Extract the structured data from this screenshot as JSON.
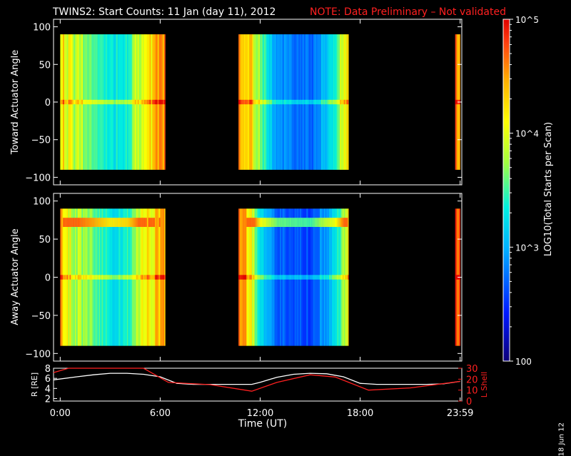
{
  "header": {
    "title": "TWINS2: Start Counts: 11 Jan (day  11), 2012",
    "note": "NOTE: Data Preliminary – Not validated"
  },
  "footer": {
    "xlabel": "Time (UT)",
    "stamp": "18 Jun 12"
  },
  "colors": {
    "background": "#000000",
    "axes": "#ffffff",
    "note": "#ff2020",
    "lshell_line": "#ff2020",
    "r_line": "#ffffff"
  },
  "chart_data": [
    {
      "type": "heatmap",
      "ylabel": "Toward Actuator Angle",
      "ylim": [
        -110,
        110
      ],
      "y_ticks": [
        100,
        50,
        0,
        -50,
        -100
      ],
      "data_y_range": [
        -90,
        90
      ],
      "x_ticks_hours": [
        0,
        6,
        12,
        18,
        24
      ],
      "x_tick_labels": [
        "0:00",
        "6:00",
        "12:00",
        "18:00",
        "23:59"
      ],
      "xlim_hours": [
        -0.4,
        24.1
      ],
      "blocks_hours": [
        [
          0.0,
          6.3
        ],
        [
          10.7,
          17.3
        ],
        [
          23.7,
          24.0
        ]
      ],
      "log10_counts_profile": [
        {
          "t": 0.0,
          "v": 4.3
        },
        {
          "t": 0.5,
          "v": 4.0
        },
        {
          "t": 1.0,
          "v": 3.8
        },
        {
          "t": 2.0,
          "v": 3.6
        },
        {
          "t": 3.0,
          "v": 3.3
        },
        {
          "t": 4.0,
          "v": 3.4
        },
        {
          "t": 5.0,
          "v": 4.1
        },
        {
          "t": 6.0,
          "v": 4.5
        },
        {
          "t": 10.7,
          "v": 4.6
        },
        {
          "t": 11.5,
          "v": 4.2
        },
        {
          "t": 12.0,
          "v": 3.6
        },
        {
          "t": 13.0,
          "v": 2.9
        },
        {
          "t": 15.0,
          "v": 2.7
        },
        {
          "t": 16.5,
          "v": 3.4
        },
        {
          "t": 17.3,
          "v": 4.3
        },
        {
          "t": 23.7,
          "v": 4.6
        },
        {
          "t": 24.0,
          "v": 4.6
        }
      ],
      "colorbar": {
        "label": "LOG10(Total Starts per Scan)",
        "range": [
          100,
          100000
        ],
        "ticks": [
          "10^5",
          "10^4",
          "10^3",
          "100"
        ]
      }
    },
    {
      "type": "heatmap",
      "ylabel": "Away Actuator Angle",
      "ylim": [
        -110,
        110
      ],
      "y_ticks": [
        100,
        50,
        0,
        -50,
        -100
      ],
      "data_y_range": [
        -90,
        90
      ],
      "x_ticks_hours": [
        0,
        6,
        12,
        18,
        24
      ],
      "x_tick_labels": [
        "0:00",
        "6:00",
        "12:00",
        "18:00",
        "23:59"
      ],
      "xlim_hours": [
        -0.4,
        24.1
      ],
      "blocks_hours": [
        [
          0.0,
          6.3
        ],
        [
          10.7,
          17.3
        ],
        [
          23.7,
          24.0
        ]
      ],
      "log10_counts_profile": [
        {
          "t": 0.0,
          "v": 4.4
        },
        {
          "t": 0.5,
          "v": 4.0
        },
        {
          "t": 1.0,
          "v": 3.8
        },
        {
          "t": 2.0,
          "v": 3.6
        },
        {
          "t": 3.0,
          "v": 3.3
        },
        {
          "t": 4.0,
          "v": 3.4
        },
        {
          "t": 5.0,
          "v": 4.0
        },
        {
          "t": 6.0,
          "v": 4.4
        },
        {
          "t": 10.7,
          "v": 4.8
        },
        {
          "t": 11.5,
          "v": 4.0
        },
        {
          "t": 12.0,
          "v": 3.2
        },
        {
          "t": 13.0,
          "v": 2.7
        },
        {
          "t": 15.0,
          "v": 2.6
        },
        {
          "t": 16.5,
          "v": 3.2
        },
        {
          "t": 17.3,
          "v": 4.2
        },
        {
          "t": 23.7,
          "v": 4.7
        },
        {
          "t": 24.0,
          "v": 4.7
        }
      ],
      "high_band_angle_deg": 72
    },
    {
      "type": "line",
      "ylabel": "R [RE]",
      "y2label": "L Shell",
      "ylim": [
        1.5,
        8
      ],
      "y_ticks": [
        8,
        6,
        4,
        2
      ],
      "y2lim": [
        0,
        30
      ],
      "y2_ticks": [
        30,
        20,
        10,
        0
      ],
      "x_ticks_hours": [
        0,
        6,
        12,
        18,
        24
      ],
      "x_tick_labels": [
        "0:00",
        "6:00",
        "12:00",
        "18:00",
        "23:59"
      ],
      "xlim_hours": [
        -0.4,
        24.1
      ],
      "series": [
        {
          "axis": "left",
          "color": "#ffffff",
          "x": [
            -0.4,
            1,
            2,
            3,
            4,
            5,
            6,
            7,
            8,
            9,
            10,
            11,
            11.5,
            12,
            13,
            14,
            15,
            16,
            17,
            18,
            19,
            20,
            21,
            22,
            23,
            24
          ],
          "y": [
            5.7,
            6.3,
            6.7,
            7.0,
            7.0,
            6.8,
            6.3,
            5.0,
            4.8,
            4.8,
            4.8,
            4.8,
            4.8,
            5.2,
            6.2,
            6.8,
            7.0,
            6.9,
            6.3,
            5.0,
            4.8,
            4.8,
            4.8,
            4.8,
            4.9,
            5.4
          ]
        },
        {
          "axis": "right",
          "color": "#ff2020",
          "x": [
            -0.4,
            0.5,
            5.0,
            6.5,
            9.0,
            11.5,
            13.0,
            15.0,
            16.5,
            18.5,
            21.0,
            24.0
          ],
          "y": [
            26,
            31,
            31,
            17,
            15,
            9,
            17,
            24,
            22,
            10,
            12,
            18
          ]
        }
      ]
    }
  ]
}
